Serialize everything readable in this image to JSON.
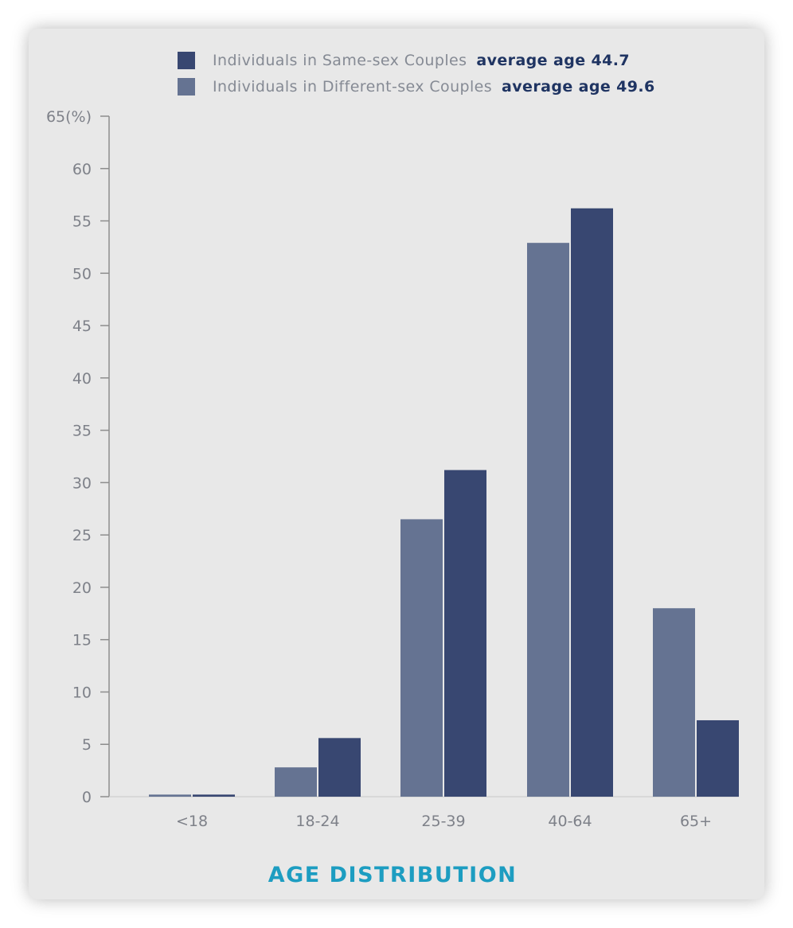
{
  "chart_data": {
    "type": "bar",
    "categories": [
      "<18",
      "18-24",
      "25-39",
      "40-64",
      "65+"
    ],
    "series": [
      {
        "name": "Individuals in Different-sex Couples",
        "average_label": "average age 49.6",
        "color": "#657392",
        "values": [
          0.2,
          2.8,
          26.5,
          52.9,
          18.0
        ]
      },
      {
        "name": "Individuals in Same-sex Couples",
        "average_label": "average age 44.7",
        "color": "#384771",
        "values": [
          0.2,
          5.6,
          31.2,
          56.2,
          7.3
        ]
      }
    ],
    "ylim": [
      0,
      65
    ],
    "y_ticks": [
      "0",
      "5",
      "10",
      "15",
      "20",
      "25",
      "30",
      "35",
      "40",
      "45",
      "50",
      "55",
      "60",
      "65(%)"
    ],
    "xlabel": "AGE DISTRIBUTION",
    "ylabel": "",
    "legend_position": "top",
    "grid": false
  },
  "legend": [
    {
      "label": "Individuals in Same-sex Couples",
      "avg": "average age 44.7",
      "color": "#384771"
    },
    {
      "label": "Individuals in Different-sex Couples",
      "avg": "average age 49.6",
      "color": "#657392"
    }
  ],
  "caption": "AGE DISTRIBUTION"
}
